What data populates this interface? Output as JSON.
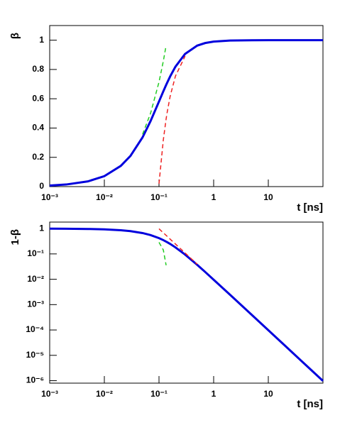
{
  "chart_data": [
    {
      "type": "line",
      "ylabel": "β",
      "xlabel": "t [ns]",
      "xlog": true,
      "ylog": false,
      "xlim": [
        0.001,
        100
      ],
      "ylim": [
        0,
        1.1
      ],
      "xticks": [
        {
          "value": 0.001,
          "label": "10⁻³"
        },
        {
          "value": 0.01,
          "label": "10⁻²"
        },
        {
          "value": 0.1,
          "label": "10⁻¹"
        },
        1,
        10
      ],
      "yticks": [
        0,
        0.2,
        0.4,
        0.6,
        0.8,
        1
      ],
      "x": [
        0.001,
        0.002,
        0.005,
        0.01,
        0.02,
        0.03,
        0.05,
        0.07,
        0.1,
        0.12,
        0.135,
        0.14,
        0.16,
        0.2,
        0.3,
        0.5,
        0.7,
        1,
        2,
        5,
        10,
        20,
        50,
        100
      ],
      "series": [
        {
          "color": "#0000dd",
          "dashed": false,
          "values": [
            0.00714,
            0.01428,
            0.0357,
            0.0712,
            0.1414,
            0.2095,
            0.3363,
            0.4472,
            0.5812,
            0.6508,
            0.6941,
            0.7071,
            0.7526,
            0.8192,
            0.9062,
            0.963,
            0.9806,
            0.9904,
            0.99756,
            0.99961,
            0.999902,
            0.9999755,
            0.9999961,
            0.99999902
          ]
        },
        {
          "color": "#22cc22",
          "dashed": true,
          "values": [
            null,
            null,
            null,
            null,
            null,
            null,
            0.357,
            0.5,
            0.714,
            0.857,
            0.9643,
            null,
            null,
            null,
            null,
            null,
            null,
            null,
            null,
            null,
            null,
            null,
            null,
            null
          ]
        },
        {
          "color": "#ee2222",
          "dashed": true,
          "values": [
            null,
            null,
            null,
            null,
            null,
            null,
            null,
            null,
            0.02,
            0.3194,
            0.4623,
            0.5,
            0.6172,
            0.755,
            0.8911,
            null,
            null,
            null,
            null,
            null,
            null,
            null,
            null,
            null
          ]
        }
      ]
    },
    {
      "type": "line",
      "ylabel": "1-β",
      "xlabel": "t [ns]",
      "xlog": true,
      "ylog": true,
      "xlim": [
        0.001,
        100
      ],
      "ylim": [
        8e-07,
        1.8
      ],
      "xticks": [
        {
          "value": 0.001,
          "label": "10⁻³"
        },
        {
          "value": 0.01,
          "label": "10⁻²"
        },
        {
          "value": 0.1,
          "label": "10⁻¹"
        },
        1,
        10
      ],
      "yticks": [
        1,
        {
          "value": 0.1,
          "label": "10⁻¹"
        },
        {
          "value": 0.01,
          "label": "10⁻²"
        },
        {
          "value": 0.001,
          "label": "10⁻³"
        },
        {
          "value": 0.0001,
          "label": "10⁻⁴"
        },
        {
          "value": 1e-05,
          "label": "10⁻⁵"
        },
        {
          "value": 1e-06,
          "label": "10⁻⁶"
        }
      ],
      "x": [
        0.001,
        0.002,
        0.005,
        0.01,
        0.02,
        0.03,
        0.05,
        0.07,
        0.1,
        0.12,
        0.135,
        0.14,
        0.16,
        0.2,
        0.3,
        0.5,
        0.7,
        1,
        2,
        5,
        10,
        20,
        50,
        100
      ],
      "series": [
        {
          "color": "#0000dd",
          "dashed": false,
          "values": [
            0.99286,
            0.98572,
            0.9643,
            0.9288,
            0.8586,
            0.7905,
            0.6637,
            0.5528,
            0.4188,
            0.3492,
            0.3059,
            0.2929,
            0.2474,
            0.1808,
            0.0938,
            0.037,
            0.0194,
            0.0096,
            0.00244,
            0.000392,
            9.8e-05,
            2.45e-05,
            3.9e-06,
            9.8e-07
          ]
        },
        {
          "color": "#22cc22",
          "dashed": true,
          "values": [
            null,
            null,
            null,
            null,
            null,
            null,
            null,
            null,
            0.286,
            0.143,
            0.0357,
            null,
            null,
            null,
            null,
            null,
            null,
            null,
            null,
            null,
            null,
            null,
            null,
            null
          ]
        },
        {
          "color": "#ee2222",
          "dashed": true,
          "values": [
            null,
            null,
            null,
            null,
            null,
            null,
            null,
            null,
            0.98,
            0.6806,
            0.5377,
            0.5,
            0.3828,
            0.245,
            0.1089,
            0.0392,
            null,
            null,
            null,
            null,
            null,
            null,
            null,
            null
          ]
        }
      ]
    }
  ]
}
